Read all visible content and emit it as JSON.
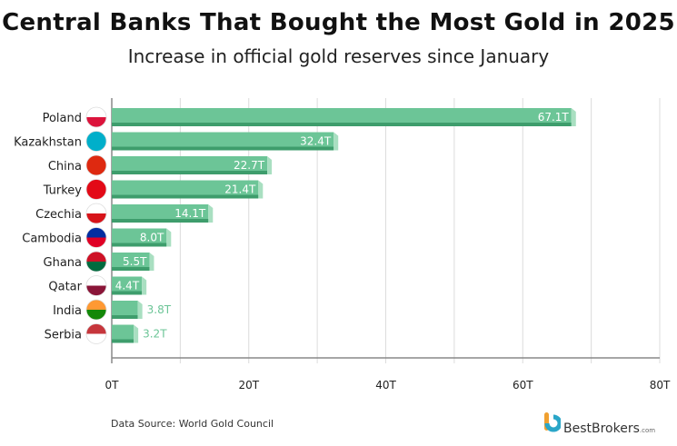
{
  "chart_data": {
    "type": "bar",
    "orientation": "horizontal",
    "title": "Central Banks That Bought the Most Gold in 2025",
    "subtitle": "Increase in official gold reserves since January",
    "categories": [
      "Poland",
      "Kazakhstan",
      "China",
      "Turkey",
      "Czechia",
      "Cambodia",
      "Ghana",
      "Qatar",
      "India",
      "Serbia"
    ],
    "values": [
      67.1,
      32.4,
      22.7,
      21.4,
      14.1,
      8.0,
      5.5,
      4.4,
      3.8,
      3.2
    ],
    "data_labels": [
      "67.1T",
      "32.4T",
      "22.7T",
      "21.4T",
      "14.1T",
      "8.0T",
      "5.5T",
      "4.4T",
      "3.8T",
      "3.2T"
    ],
    "flag_icons": [
      "poland-flag-icon",
      "kazakhstan-flag-icon",
      "china-flag-icon",
      "turkey-flag-icon",
      "czechia-flag-icon",
      "cambodia-flag-icon",
      "ghana-flag-icon",
      "qatar-flag-icon",
      "india-flag-icon",
      "serbia-flag-icon"
    ],
    "xlim": [
      0,
      80
    ],
    "x_ticks": [
      0,
      20,
      40,
      60,
      80
    ],
    "x_tick_labels": [
      "0T",
      "20T",
      "40T",
      "60T",
      "80T"
    ],
    "grid": "vertical",
    "bar_color": "#6cc597",
    "label_color": "#6cc597"
  },
  "footer": {
    "source": "Data Source: World Gold Council",
    "logo_text": "BestBrokers",
    "logo_suffix": ".com"
  }
}
